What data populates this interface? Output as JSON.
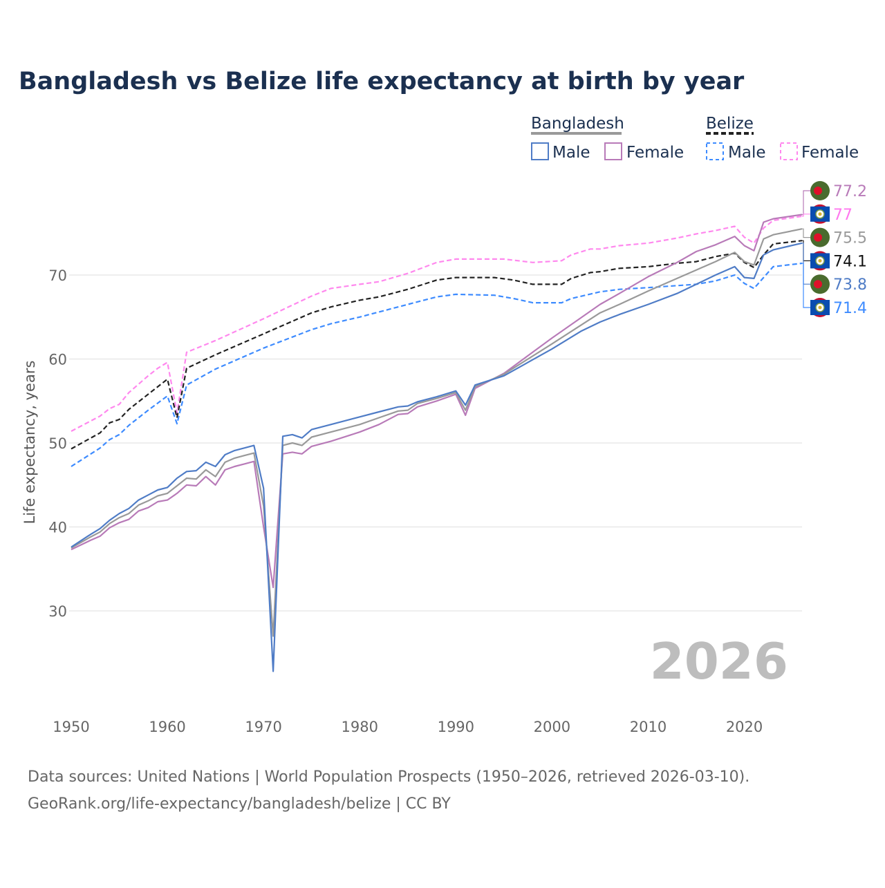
{
  "chart_data": {
    "type": "line",
    "title": "Bangladesh vs Belize life expectancy at birth by year",
    "xlabel": "",
    "ylabel": "Life expectancy, years",
    "xlim": [
      1950,
      2026
    ],
    "ylim": [
      21,
      80
    ],
    "x_ticks": [
      1950,
      1960,
      1970,
      1980,
      1990,
      2000,
      2010,
      2020
    ],
    "y_ticks": [
      30,
      40,
      50,
      60,
      70
    ],
    "grid": true,
    "year_watermark": "2026",
    "legend": {
      "placement": "top-right",
      "groups": [
        {
          "name": "Bangladesh",
          "items": [
            "Male",
            "Female"
          ]
        },
        {
          "name": "Belize",
          "items": [
            "Male",
            "Female"
          ]
        }
      ]
    },
    "series": [
      {
        "name": "Belize Female",
        "key": "bz_f",
        "color": "#ff88ee",
        "dashed": true,
        "end_label": "77",
        "points": [
          [
            1950,
            51.4
          ],
          [
            1953,
            53.2
          ],
          [
            1954,
            54.1
          ],
          [
            1955,
            54.6
          ],
          [
            1956,
            56.0
          ],
          [
            1958,
            58.0
          ],
          [
            1959,
            58.9
          ],
          [
            1960,
            59.6
          ],
          [
            1961,
            53.6
          ],
          [
            1962,
            60.8
          ],
          [
            1965,
            62.2
          ],
          [
            1970,
            64.8
          ],
          [
            1975,
            67.5
          ],
          [
            1977,
            68.4
          ],
          [
            1980,
            68.9
          ],
          [
            1982,
            69.2
          ],
          [
            1985,
            70.2
          ],
          [
            1988,
            71.5
          ],
          [
            1990,
            71.9
          ],
          [
            1992,
            71.9
          ],
          [
            1995,
            71.9
          ],
          [
            1998,
            71.5
          ],
          [
            2001,
            71.7
          ],
          [
            2002,
            72.4
          ],
          [
            2004,
            73.1
          ],
          [
            2005,
            73.1
          ],
          [
            2007,
            73.5
          ],
          [
            2010,
            73.8
          ],
          [
            2013,
            74.4
          ],
          [
            2015,
            74.9
          ],
          [
            2017,
            75.3
          ],
          [
            2019,
            75.8
          ],
          [
            2020,
            74.5
          ],
          [
            2021,
            73.8
          ],
          [
            2022,
            75.6
          ],
          [
            2023,
            76.5
          ],
          [
            2026,
            77.0
          ]
        ]
      },
      {
        "name": "Belize Total",
        "key": "bz_t",
        "color": "#222222",
        "dashed": true,
        "end_label": "74.1",
        "points": [
          [
            1950,
            49.3
          ],
          [
            1953,
            51.2
          ],
          [
            1954,
            52.4
          ],
          [
            1955,
            52.8
          ],
          [
            1956,
            54.0
          ],
          [
            1958,
            55.8
          ],
          [
            1960,
            57.6
          ],
          [
            1961,
            53.0
          ],
          [
            1962,
            58.9
          ],
          [
            1965,
            60.5
          ],
          [
            1970,
            63.0
          ],
          [
            1975,
            65.5
          ],
          [
            1977,
            66.2
          ],
          [
            1980,
            67.0
          ],
          [
            1982,
            67.4
          ],
          [
            1985,
            68.3
          ],
          [
            1988,
            69.4
          ],
          [
            1990,
            69.7
          ],
          [
            1994,
            69.7
          ],
          [
            1996,
            69.4
          ],
          [
            1998,
            68.9
          ],
          [
            2001,
            68.9
          ],
          [
            2002,
            69.6
          ],
          [
            2004,
            70.3
          ],
          [
            2005,
            70.4
          ],
          [
            2007,
            70.8
          ],
          [
            2010,
            71.0
          ],
          [
            2013,
            71.4
          ],
          [
            2015,
            71.6
          ],
          [
            2017,
            72.2
          ],
          [
            2019,
            72.6
          ],
          [
            2020,
            71.5
          ],
          [
            2021,
            70.9
          ],
          [
            2022,
            72.4
          ],
          [
            2023,
            73.7
          ],
          [
            2026,
            74.1
          ]
        ]
      },
      {
        "name": "Belize Male",
        "key": "bz_m",
        "color": "#3d8bff",
        "dashed": true,
        "end_label": "71.4",
        "points": [
          [
            1950,
            47.2
          ],
          [
            1953,
            49.4
          ],
          [
            1954,
            50.4
          ],
          [
            1955,
            51.0
          ],
          [
            1956,
            52.1
          ],
          [
            1958,
            53.9
          ],
          [
            1960,
            55.6
          ],
          [
            1961,
            52.3
          ],
          [
            1962,
            56.9
          ],
          [
            1965,
            58.8
          ],
          [
            1970,
            61.3
          ],
          [
            1975,
            63.5
          ],
          [
            1977,
            64.2
          ],
          [
            1980,
            65.0
          ],
          [
            1983,
            65.9
          ],
          [
            1985,
            66.5
          ],
          [
            1988,
            67.4
          ],
          [
            1990,
            67.7
          ],
          [
            1994,
            67.6
          ],
          [
            1996,
            67.2
          ],
          [
            1998,
            66.7
          ],
          [
            2001,
            66.7
          ],
          [
            2002,
            67.2
          ],
          [
            2005,
            68.0
          ],
          [
            2007,
            68.3
          ],
          [
            2010,
            68.5
          ],
          [
            2015,
            68.9
          ],
          [
            2017,
            69.3
          ],
          [
            2019,
            70.0
          ],
          [
            2020,
            69.0
          ],
          [
            2021,
            68.4
          ],
          [
            2022,
            69.7
          ],
          [
            2023,
            71.0
          ],
          [
            2026,
            71.4
          ]
        ]
      },
      {
        "name": "Bangladesh Female",
        "key": "bd_f",
        "color": "#b87ab8",
        "dashed": false,
        "end_label": "77.2",
        "points": [
          [
            1950,
            37.3
          ],
          [
            1952,
            38.4
          ],
          [
            1953,
            38.9
          ],
          [
            1954,
            39.9
          ],
          [
            1955,
            40.5
          ],
          [
            1956,
            40.9
          ],
          [
            1957,
            41.9
          ],
          [
            1958,
            42.3
          ],
          [
            1959,
            43.0
          ],
          [
            1960,
            43.2
          ],
          [
            1961,
            44.0
          ],
          [
            1962,
            45.0
          ],
          [
            1963,
            44.9
          ],
          [
            1964,
            46.0
          ],
          [
            1965,
            45.0
          ],
          [
            1966,
            46.8
          ],
          [
            1967,
            47.2
          ],
          [
            1968,
            47.5
          ],
          [
            1969,
            47.8
          ],
          [
            1970,
            40.0
          ],
          [
            1971,
            32.8
          ],
          [
            1972,
            48.7
          ],
          [
            1973,
            48.9
          ],
          [
            1974,
            48.7
          ],
          [
            1975,
            49.6
          ],
          [
            1977,
            50.2
          ],
          [
            1980,
            51.3
          ],
          [
            1982,
            52.2
          ],
          [
            1984,
            53.4
          ],
          [
            1985,
            53.5
          ],
          [
            1986,
            54.3
          ],
          [
            1988,
            55.0
          ],
          [
            1990,
            55.8
          ],
          [
            1991,
            53.3
          ],
          [
            1992,
            56.5
          ],
          [
            1995,
            58.3
          ],
          [
            2000,
            62.5
          ],
          [
            2005,
            66.5
          ],
          [
            2007,
            67.8
          ],
          [
            2010,
            69.8
          ],
          [
            2013,
            71.5
          ],
          [
            2015,
            72.8
          ],
          [
            2017,
            73.6
          ],
          [
            2019,
            74.6
          ],
          [
            2020,
            73.5
          ],
          [
            2021,
            72.9
          ],
          [
            2022,
            76.3
          ],
          [
            2023,
            76.7
          ],
          [
            2026,
            77.2
          ]
        ]
      },
      {
        "name": "Bangladesh Total",
        "key": "bd_t",
        "color": "#999999",
        "dashed": false,
        "end_label": "75.5",
        "points": [
          [
            1950,
            37.5
          ],
          [
            1952,
            38.8
          ],
          [
            1953,
            39.4
          ],
          [
            1954,
            40.4
          ],
          [
            1955,
            41.1
          ],
          [
            1956,
            41.6
          ],
          [
            1957,
            42.6
          ],
          [
            1958,
            43.1
          ],
          [
            1959,
            43.7
          ],
          [
            1960,
            44.0
          ],
          [
            1961,
            44.9
          ],
          [
            1962,
            45.8
          ],
          [
            1963,
            45.7
          ],
          [
            1964,
            46.8
          ],
          [
            1965,
            46.0
          ],
          [
            1966,
            47.7
          ],
          [
            1967,
            48.2
          ],
          [
            1968,
            48.5
          ],
          [
            1969,
            48.8
          ],
          [
            1970,
            42.5
          ],
          [
            1971,
            27.0
          ],
          [
            1972,
            49.7
          ],
          [
            1973,
            50.0
          ],
          [
            1974,
            49.7
          ],
          [
            1975,
            50.7
          ],
          [
            1977,
            51.3
          ],
          [
            1980,
            52.2
          ],
          [
            1982,
            53.0
          ],
          [
            1984,
            53.8
          ],
          [
            1985,
            53.9
          ],
          [
            1986,
            54.7
          ],
          [
            1988,
            55.3
          ],
          [
            1990,
            56.0
          ],
          [
            1991,
            53.9
          ],
          [
            1992,
            56.7
          ],
          [
            1995,
            58.2
          ],
          [
            2000,
            61.8
          ],
          [
            2005,
            65.5
          ],
          [
            2007,
            66.5
          ],
          [
            2010,
            68.1
          ],
          [
            2013,
            69.6
          ],
          [
            2015,
            70.6
          ],
          [
            2017,
            71.6
          ],
          [
            2019,
            72.7
          ],
          [
            2020,
            71.6
          ],
          [
            2021,
            71.2
          ],
          [
            2022,
            74.3
          ],
          [
            2023,
            74.8
          ],
          [
            2026,
            75.5
          ]
        ]
      },
      {
        "name": "Bangladesh Male",
        "key": "bd_m",
        "color": "#4f7cc6",
        "dashed": false,
        "end_label": "73.8",
        "points": [
          [
            1950,
            37.6
          ],
          [
            1952,
            39.1
          ],
          [
            1953,
            39.8
          ],
          [
            1954,
            40.8
          ],
          [
            1955,
            41.6
          ],
          [
            1956,
            42.2
          ],
          [
            1957,
            43.2
          ],
          [
            1958,
            43.8
          ],
          [
            1959,
            44.4
          ],
          [
            1960,
            44.7
          ],
          [
            1961,
            45.8
          ],
          [
            1962,
            46.6
          ],
          [
            1963,
            46.7
          ],
          [
            1964,
            47.7
          ],
          [
            1965,
            47.2
          ],
          [
            1966,
            48.6
          ],
          [
            1967,
            49.1
          ],
          [
            1968,
            49.4
          ],
          [
            1969,
            49.7
          ],
          [
            1970,
            44.6
          ],
          [
            1971,
            22.8
          ],
          [
            1972,
            50.8
          ],
          [
            1973,
            51.0
          ],
          [
            1974,
            50.6
          ],
          [
            1975,
            51.6
          ],
          [
            1977,
            52.2
          ],
          [
            1980,
            53.1
          ],
          [
            1982,
            53.7
          ],
          [
            1984,
            54.3
          ],
          [
            1985,
            54.4
          ],
          [
            1986,
            54.9
          ],
          [
            1988,
            55.5
          ],
          [
            1990,
            56.2
          ],
          [
            1991,
            54.5
          ],
          [
            1992,
            56.9
          ],
          [
            1995,
            58.0
          ],
          [
            2000,
            61.2
          ],
          [
            2003,
            63.3
          ],
          [
            2005,
            64.4
          ],
          [
            2007,
            65.3
          ],
          [
            2010,
            66.5
          ],
          [
            2013,
            67.8
          ],
          [
            2015,
            68.9
          ],
          [
            2017,
            70.0
          ],
          [
            2019,
            71.0
          ],
          [
            2020,
            69.7
          ],
          [
            2021,
            69.6
          ],
          [
            2022,
            72.4
          ],
          [
            2023,
            73.0
          ],
          [
            2026,
            73.8
          ]
        ]
      }
    ]
  },
  "legend_labels": {
    "bangladesh": "Bangladesh",
    "belize": "Belize",
    "male": "Male",
    "female": "Female"
  },
  "end_labels": [
    "77.2",
    "77",
    "75.5",
    "74.1",
    "73.8",
    "71.4"
  ],
  "footer": {
    "line1": "Data sources: United Nations | World Population Prospects (1950–2026, retrieved 2026-03-10).",
    "line2": "GeoRank.org/life-expectancy/bangladesh/belize | CC BY"
  }
}
